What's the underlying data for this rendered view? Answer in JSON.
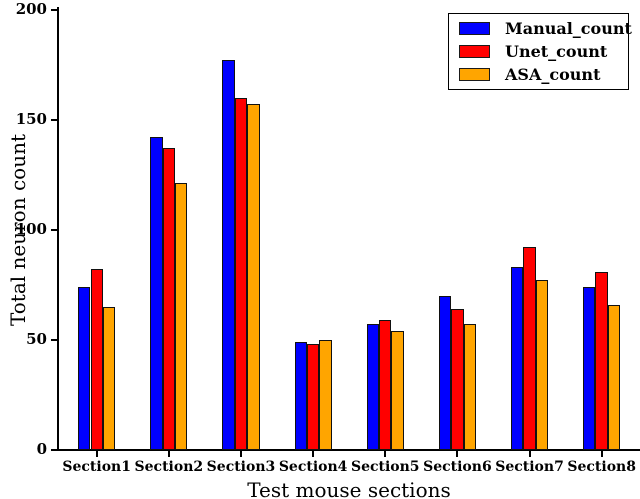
{
  "chart_data": {
    "type": "bar",
    "title": "",
    "xlabel": "Test mouse sections",
    "ylabel": "Total neuron count",
    "ylim": [
      0,
      200
    ],
    "yticks": [
      0,
      50,
      100,
      150,
      200
    ],
    "grid": false,
    "legend_position": "upper right",
    "bar_edge_color": "#111111",
    "categories": [
      "Section1",
      "Section2",
      "Section3",
      "Section4",
      "Section5",
      "Section6",
      "Section7",
      "Section8"
    ],
    "series": [
      {
        "name": "Manual_count",
        "color": "#0000ff",
        "values": [
          74,
          142,
          177,
          49,
          57,
          70,
          83,
          74
        ]
      },
      {
        "name": "Unet_count",
        "color": "#ff0000",
        "values": [
          82,
          137,
          160,
          48,
          59,
          64,
          92,
          81
        ]
      },
      {
        "name": "ASA_count",
        "color": "#ffa500",
        "values": [
          65,
          121,
          157,
          50,
          54,
          57,
          77,
          66
        ]
      }
    ]
  }
}
